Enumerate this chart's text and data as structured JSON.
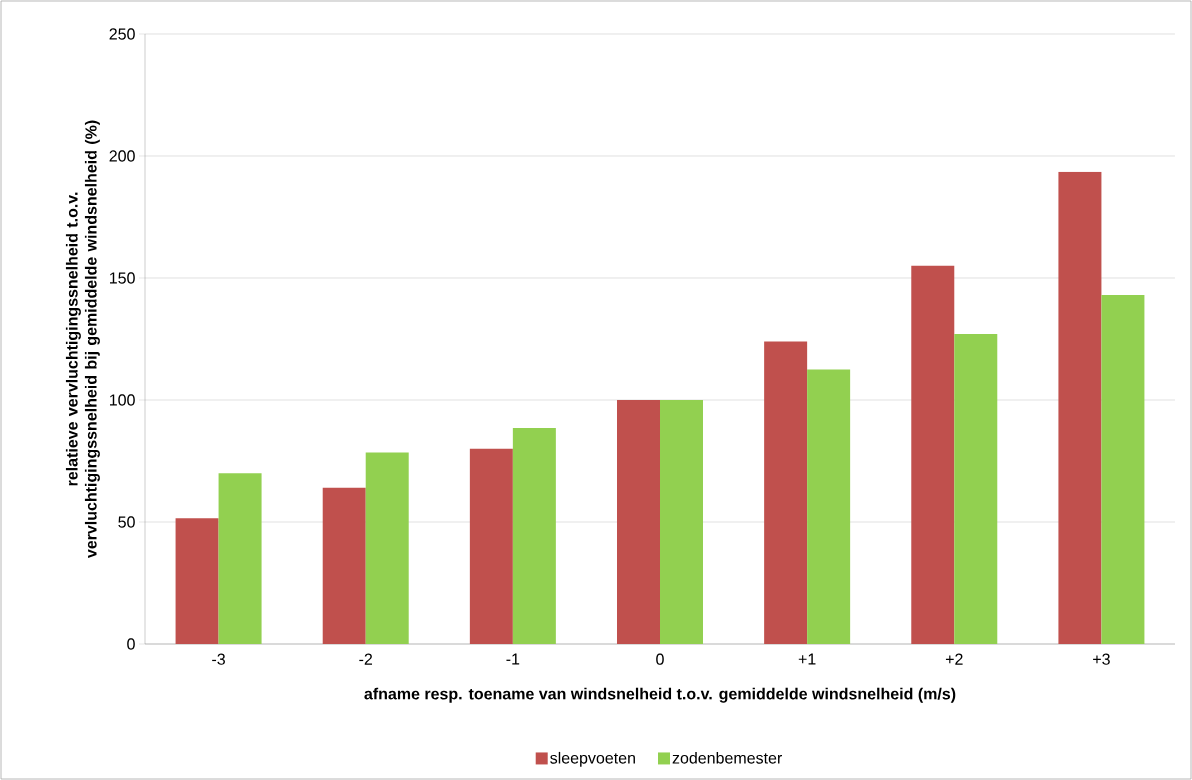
{
  "chart_data": {
    "type": "bar",
    "xlabel": "afname resp. toename van windsnelheid t.o.v. gemiddelde windsnelheid (m/s)",
    "ylabel": "relatieve vervluchtigingssnelheid t.o.v. vervluchtigingssnelheid bij gemiddelde windsnelheid (%)",
    "categories": [
      "-3",
      "-2",
      "-1",
      "0",
      "+1",
      "+2",
      "+3"
    ],
    "series": [
      {
        "name": "sleepvoeten",
        "color": "#c0504d",
        "values": [
          51.5,
          64,
          80,
          100,
          124,
          155,
          193.5
        ]
      },
      {
        "name": "zodenbemester",
        "color": "#92d050",
        "values": [
          70,
          78.5,
          88.5,
          100,
          112.5,
          127,
          143
        ]
      }
    ],
    "ylim": [
      0,
      250
    ],
    "yticks": [
      0,
      50,
      100,
      150,
      200,
      250
    ],
    "grid": "y",
    "legend": "bottom"
  }
}
